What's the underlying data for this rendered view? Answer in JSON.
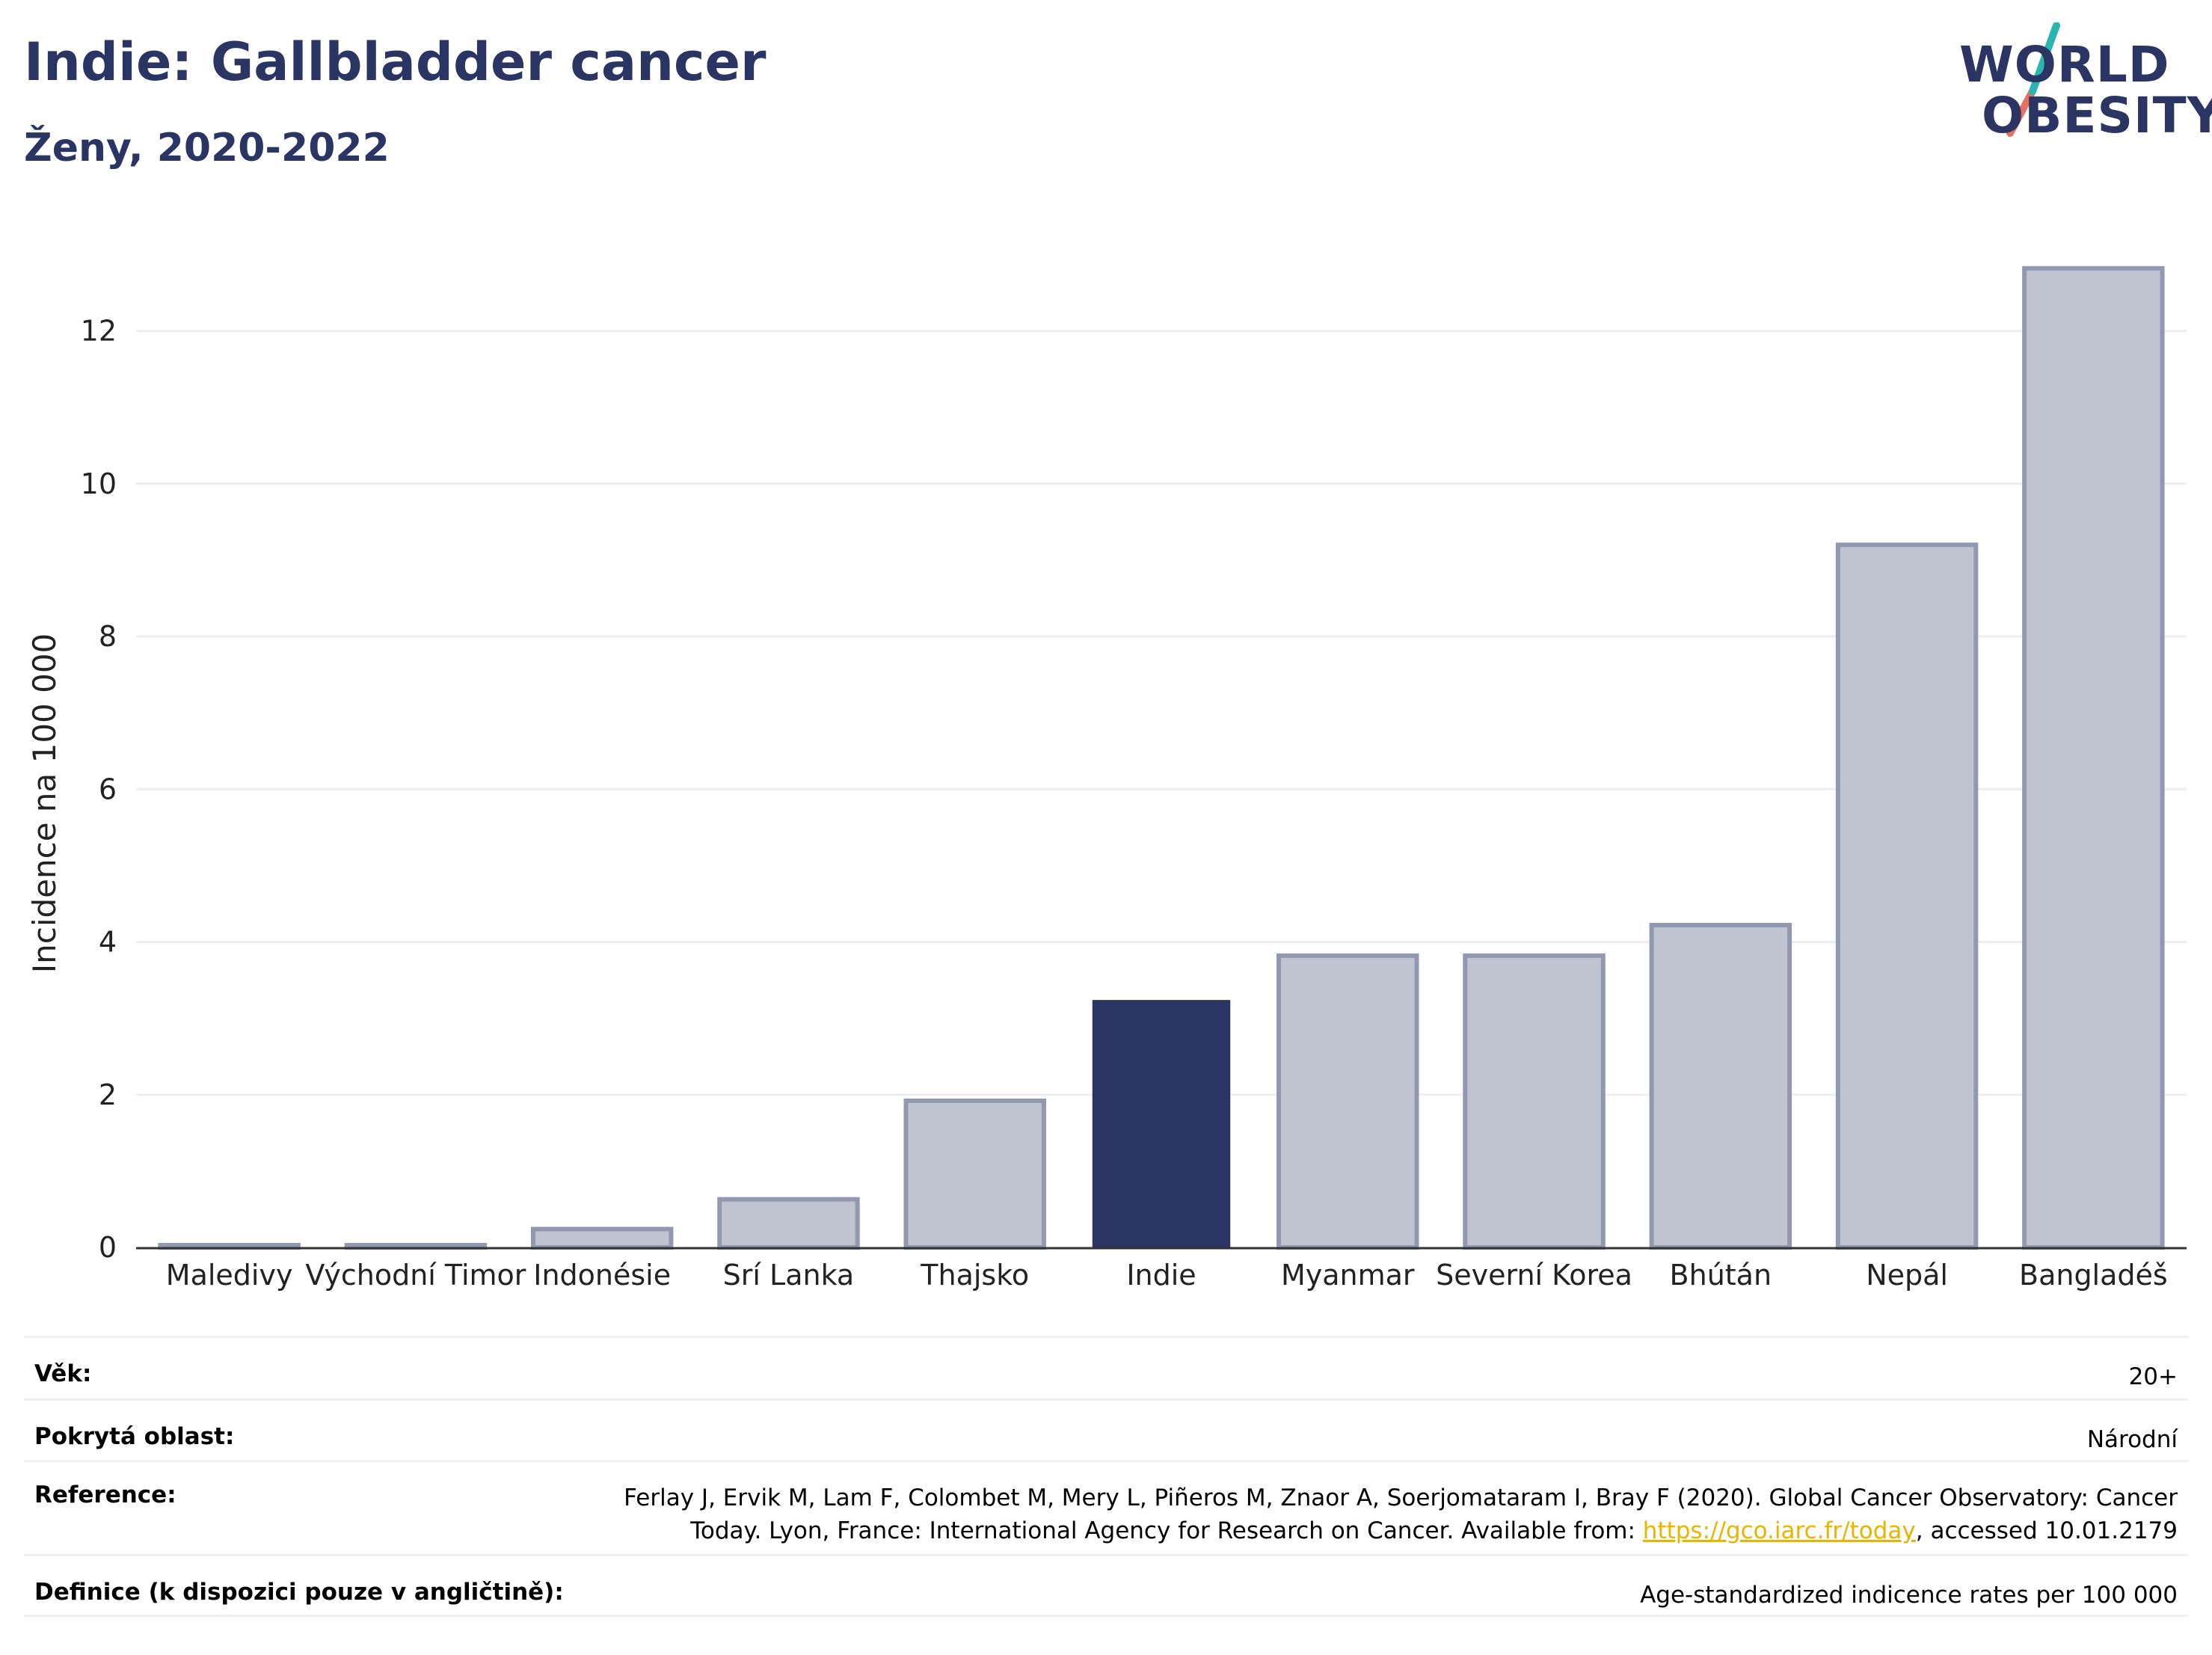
{
  "header": {
    "title": "Indie: Gallbladder cancer",
    "subtitle": "Ženy, 2020-2022"
  },
  "logo": {
    "line1": "WORLD",
    "line2": "OBESITY",
    "slash_colors": [
      "#2bb5b0",
      "#e8705e"
    ]
  },
  "chart_data": {
    "type": "bar",
    "categories": [
      "Maledivy",
      "Východní Timor",
      "Indonésie",
      "Srí Lanka",
      "Thajsko",
      "Indie",
      "Myanmar",
      "Severní Korea",
      "Bhútán",
      "Nepál",
      "Bangladéš"
    ],
    "values": [
      0.03,
      0.03,
      0.24,
      0.63,
      1.92,
      3.24,
      3.82,
      3.82,
      4.22,
      9.2,
      12.82
    ],
    "highlight": "Indie",
    "ylabel": "Incidence na 100 000",
    "ylim": [
      0,
      13.2
    ],
    "yticks": [
      0,
      2,
      4,
      6,
      8,
      10,
      12
    ],
    "grid": true,
    "colors": {
      "highlight": "#2b3563",
      "other_fill": "#c0c4d1",
      "other_stroke": "#9198b0",
      "grid": "#eceef2",
      "axis": "#333333"
    }
  },
  "meta": {
    "age": {
      "label": "Věk:",
      "value": "20+"
    },
    "area": {
      "label": "Pokrytá oblast:",
      "value": "Národní"
    },
    "reference": {
      "label": "Reference:",
      "text_before_link": "Ferlay J, Ervik M, Lam F, Colombet M, Mery L, Piñeros M, Znaor A, Soerjomataram I, Bray F (2020). Global Cancer Observatory: Cancer Today. Lyon, France: International Agency for Research on Cancer. Available from: ",
      "link": "https://gco.iarc.fr/today",
      "text_after_link": ", accessed 10.01.2179"
    },
    "definition": {
      "label": "Definice (k dispozici pouze v angličtině):",
      "value": "Age-standardized indicence rates per 100 000"
    }
  }
}
